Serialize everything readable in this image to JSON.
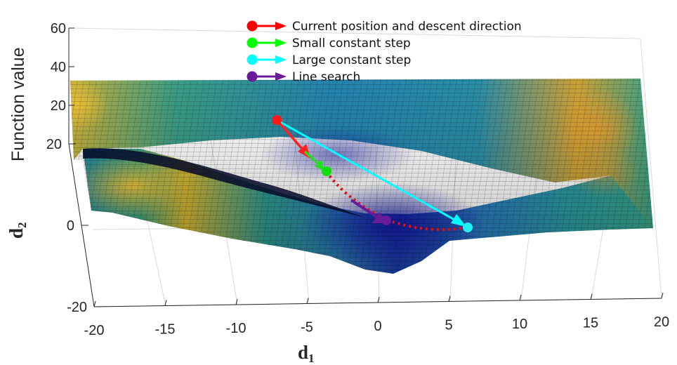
{
  "chart_data": {
    "type": "surface",
    "xlabel": "d",
    "xlabel_sub": "1",
    "ylabel": "d",
    "ylabel_sub": "2",
    "zlabel": "Function value",
    "x_ticks": [
      "-20",
      "-15",
      "-10",
      "-5",
      "0",
      "5",
      "10",
      "15",
      "20"
    ],
    "y_ticks": [
      "-20",
      "0",
      "20"
    ],
    "z_ticks": [
      "20",
      "40",
      "60"
    ],
    "xlim": [
      -20,
      20
    ],
    "ylim": [
      -20,
      20
    ],
    "zlim": [
      0,
      60
    ],
    "colormap": "parula",
    "legend": {
      "position": "top-center",
      "items": [
        {
          "label": "Current position and descent direction",
          "color": "#ff0000"
        },
        {
          "label": "Small constant step",
          "color": "#00ff00"
        },
        {
          "label": "Large constant step",
          "color": "#00ffff"
        },
        {
          "label": "Line search",
          "color": "#6a1b9a"
        }
      ]
    },
    "markers": [
      {
        "name": "current-position",
        "color": "#ff0000"
      },
      {
        "name": "small-step-end",
        "color": "#00ff00"
      },
      {
        "name": "large-step-end",
        "color": "#00ffff"
      },
      {
        "name": "line-search-end",
        "color": "#6a1b9a"
      }
    ]
  }
}
